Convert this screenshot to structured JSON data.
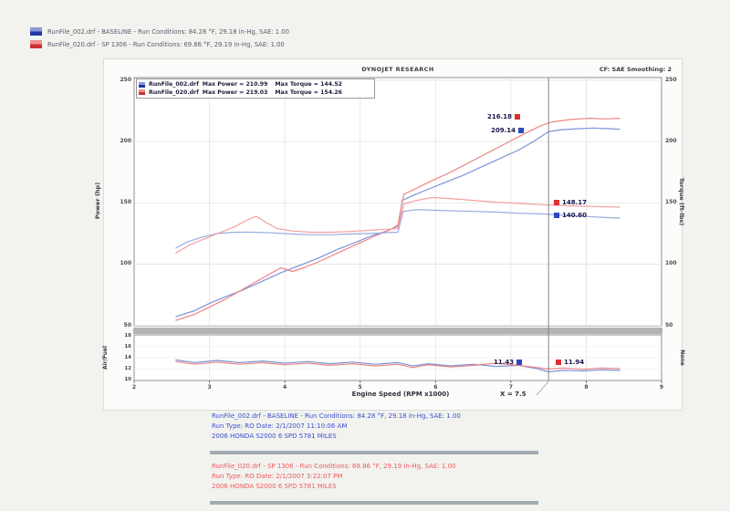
{
  "header_legend": [
    {
      "label": "RunFile_002.drf - BASELINE  -  Run Conditions: 84.28 °F, 29.18 in-Hg, SAE: 1.00",
      "color": "blue"
    },
    {
      "label": "RunFile_020.drf - SP 1306  -  Run Conditions: 69.86 °F, 29.19 in-Hg, SAE: 1.00",
      "color": "red"
    }
  ],
  "chart_header": {
    "title": "DYNOJET RESEARCH",
    "correction": "CF: SAE  Smoothing: 2"
  },
  "inplot_legend": [
    {
      "file": "RunFile_002.drf",
      "max_power": "Max Power = 210.99",
      "max_torque": "Max Torque = 144.52",
      "color": "blue"
    },
    {
      "file": "RunFile_020.drf",
      "max_power": "Max Power = 219.03",
      "max_torque": "Max Torque = 154.26",
      "color": "red"
    }
  ],
  "cursor_readouts": {
    "power_red": "216.18",
    "power_blue": "209.14",
    "torque_red": "148.17",
    "torque_blue": "140.60",
    "afr_blue": "11.43",
    "afr_red": "11.94"
  },
  "cursor_label": "X = 7.5",
  "footer": {
    "baseline": {
      "line1": "RunFile_002.drf - BASELINE  -  Run Conditions: 84.28 °F, 29.18 in-Hg, SAE: 1.00",
      "line2": "Run Type: RO  Date: 2/1/2007 11:10:06 AM",
      "line3": "2006 HONDA S2000 6 SPD  5781 MILES"
    },
    "modified": {
      "line1": "RunFile_020.drf - SP 1306  -  Run Conditions: 69.86 °F, 29.19 in-Hg, SAE: 1.00",
      "line2": "Run Type: RO  Date: 2/1/2007 3:22:07 PM",
      "line3": "2006 HONDA S2000 6 SPD  5781 MILES"
    }
  },
  "chart_data": {
    "type": "line",
    "title": "DYNOJET RESEARCH",
    "correction_factor": "SAE",
    "smoothing": 2,
    "cursor_x": 7.5,
    "x_axis": {
      "label": "Engine Speed (RPM x1000)",
      "ticks": [
        2,
        3,
        4,
        5,
        6,
        7,
        8,
        9
      ],
      "range": [
        2,
        9
      ]
    },
    "y_axis_left": {
      "label": "Power (hp)",
      "ticks": [
        250,
        200,
        150,
        100,
        50
      ],
      "range": [
        49.7,
        252.2
      ]
    },
    "y_axis_right": {
      "label": "Torque (ft-lbs)",
      "ticks": [
        250,
        200,
        150,
        100,
        50
      ],
      "range": [
        49.7,
        252.2
      ]
    },
    "afr_axis": {
      "label": "Air/Fuel",
      "right_label": "None",
      "ticks": [
        18,
        16,
        14,
        12,
        10
      ],
      "range": [
        9.85,
        18.15
      ]
    },
    "series": [
      {
        "name": "baseline-power",
        "run": "RunFile_002.drf",
        "panel": "main",
        "unit": "hp",
        "color": "#7d92d8",
        "points": [
          [
            2.55,
            57
          ],
          [
            2.8,
            62
          ],
          [
            3.0,
            68
          ],
          [
            3.2,
            73
          ],
          [
            3.45,
            79
          ],
          [
            3.7,
            86
          ],
          [
            3.95,
            93
          ],
          [
            4.2,
            99
          ],
          [
            4.45,
            105
          ],
          [
            4.7,
            112
          ],
          [
            4.95,
            118
          ],
          [
            5.15,
            123
          ],
          [
            5.35,
            127
          ],
          [
            5.5,
            131
          ],
          [
            5.56,
            152
          ],
          [
            5.7,
            156
          ],
          [
            5.9,
            161
          ],
          [
            6.1,
            166
          ],
          [
            6.35,
            172
          ],
          [
            6.6,
            179
          ],
          [
            6.85,
            186
          ],
          [
            7.1,
            193
          ],
          [
            7.3,
            200
          ],
          [
            7.5,
            208
          ],
          [
            7.65,
            209.5
          ],
          [
            7.9,
            210.5
          ],
          [
            8.1,
            211
          ],
          [
            8.3,
            210.5
          ],
          [
            8.45,
            210
          ]
        ]
      },
      {
        "name": "sp1306-power",
        "run": "RunFile_020.drf",
        "panel": "main",
        "unit": "hp",
        "color": "#ef8585",
        "points": [
          [
            2.55,
            54
          ],
          [
            2.8,
            59
          ],
          [
            3.0,
            65
          ],
          [
            3.2,
            71
          ],
          [
            3.4,
            78
          ],
          [
            3.6,
            85
          ],
          [
            3.8,
            92
          ],
          [
            3.95,
            97
          ],
          [
            4.1,
            94
          ],
          [
            4.25,
            97
          ],
          [
            4.45,
            102
          ],
          [
            4.7,
            109
          ],
          [
            4.95,
            116
          ],
          [
            5.2,
            123
          ],
          [
            5.4,
            128
          ],
          [
            5.5,
            132
          ],
          [
            5.58,
            157
          ],
          [
            5.75,
            162
          ],
          [
            5.95,
            168
          ],
          [
            6.2,
            175
          ],
          [
            6.45,
            183
          ],
          [
            6.7,
            191
          ],
          [
            6.95,
            199
          ],
          [
            7.2,
            207
          ],
          [
            7.4,
            213
          ],
          [
            7.55,
            216
          ],
          [
            7.8,
            218
          ],
          [
            8.05,
            219
          ],
          [
            8.25,
            218.5
          ],
          [
            8.45,
            219
          ]
        ]
      },
      {
        "name": "baseline-torque",
        "run": "RunFile_002.drf",
        "panel": "main",
        "unit": "ft-lbs",
        "color": "#9aaade",
        "points": [
          [
            2.55,
            113
          ],
          [
            2.7,
            118
          ],
          [
            2.9,
            122
          ],
          [
            3.1,
            125
          ],
          [
            3.35,
            126
          ],
          [
            3.6,
            126
          ],
          [
            3.85,
            125.5
          ],
          [
            4.1,
            124.5
          ],
          [
            4.35,
            124
          ],
          [
            4.6,
            124
          ],
          [
            4.85,
            124.5
          ],
          [
            5.1,
            125
          ],
          [
            5.3,
            125.5
          ],
          [
            5.5,
            126
          ],
          [
            5.57,
            143
          ],
          [
            5.75,
            144.5
          ],
          [
            5.95,
            144
          ],
          [
            6.2,
            143.5
          ],
          [
            6.5,
            143
          ],
          [
            6.8,
            142.5
          ],
          [
            7.1,
            141.5
          ],
          [
            7.4,
            141
          ],
          [
            7.5,
            140.6
          ],
          [
            7.8,
            139.5
          ],
          [
            8.1,
            138.5
          ],
          [
            8.45,
            137.5
          ]
        ]
      },
      {
        "name": "sp1306-torque",
        "run": "RunFile_020.drf",
        "panel": "main",
        "unit": "ft-lbs",
        "color": "#f3a0a0",
        "points": [
          [
            2.55,
            109
          ],
          [
            2.75,
            116
          ],
          [
            2.95,
            121
          ],
          [
            3.15,
            126
          ],
          [
            3.35,
            131
          ],
          [
            3.5,
            136
          ],
          [
            3.62,
            139
          ],
          [
            3.75,
            134
          ],
          [
            3.9,
            129
          ],
          [
            4.1,
            127
          ],
          [
            4.35,
            126
          ],
          [
            4.6,
            126
          ],
          [
            4.85,
            126.5
          ],
          [
            5.1,
            127.5
          ],
          [
            5.35,
            128.5
          ],
          [
            5.5,
            129
          ],
          [
            5.58,
            149
          ],
          [
            5.75,
            152
          ],
          [
            5.95,
            154.3
          ],
          [
            6.2,
            153.5
          ],
          [
            6.5,
            152
          ],
          [
            6.8,
            150.5
          ],
          [
            7.1,
            149.5
          ],
          [
            7.4,
            148.5
          ],
          [
            7.5,
            148.2
          ],
          [
            7.8,
            147.5
          ],
          [
            8.1,
            147
          ],
          [
            8.45,
            146.5
          ]
        ]
      },
      {
        "name": "baseline-afr",
        "run": "RunFile_002.drf",
        "panel": "afr",
        "unit": "A/F",
        "color": "#7d92d8",
        "points": [
          [
            2.55,
            13.6
          ],
          [
            2.8,
            13.1
          ],
          [
            3.1,
            13.5
          ],
          [
            3.4,
            13.1
          ],
          [
            3.7,
            13.4
          ],
          [
            4.0,
            13.0
          ],
          [
            4.3,
            13.3
          ],
          [
            4.6,
            12.9
          ],
          [
            4.9,
            13.2
          ],
          [
            5.2,
            12.8
          ],
          [
            5.5,
            13.1
          ],
          [
            5.7,
            12.5
          ],
          [
            5.9,
            12.9
          ],
          [
            6.2,
            12.5
          ],
          [
            6.5,
            12.8
          ],
          [
            6.8,
            12.4
          ],
          [
            7.1,
            12.6
          ],
          [
            7.35,
            12.0
          ],
          [
            7.5,
            11.43
          ],
          [
            7.7,
            11.7
          ],
          [
            7.95,
            11.6
          ],
          [
            8.2,
            11.8
          ],
          [
            8.45,
            11.7
          ]
        ]
      },
      {
        "name": "sp1306-afr",
        "run": "RunFile_020.drf",
        "panel": "afr",
        "unit": "A/F",
        "color": "#ef8585",
        "points": [
          [
            2.55,
            13.3
          ],
          [
            2.8,
            12.8
          ],
          [
            3.1,
            13.2
          ],
          [
            3.4,
            12.8
          ],
          [
            3.7,
            13.1
          ],
          [
            4.0,
            12.7
          ],
          [
            4.3,
            13.0
          ],
          [
            4.6,
            12.6
          ],
          [
            4.9,
            12.9
          ],
          [
            5.2,
            12.5
          ],
          [
            5.5,
            12.8
          ],
          [
            5.7,
            12.2
          ],
          [
            5.9,
            12.7
          ],
          [
            6.2,
            12.3
          ],
          [
            6.5,
            12.6
          ],
          [
            6.8,
            13.0
          ],
          [
            7.1,
            12.6
          ],
          [
            7.35,
            12.2
          ],
          [
            7.5,
            11.94
          ],
          [
            7.7,
            12.1
          ],
          [
            7.95,
            11.9
          ],
          [
            8.2,
            12.1
          ],
          [
            8.45,
            12.0
          ]
        ]
      }
    ]
  }
}
